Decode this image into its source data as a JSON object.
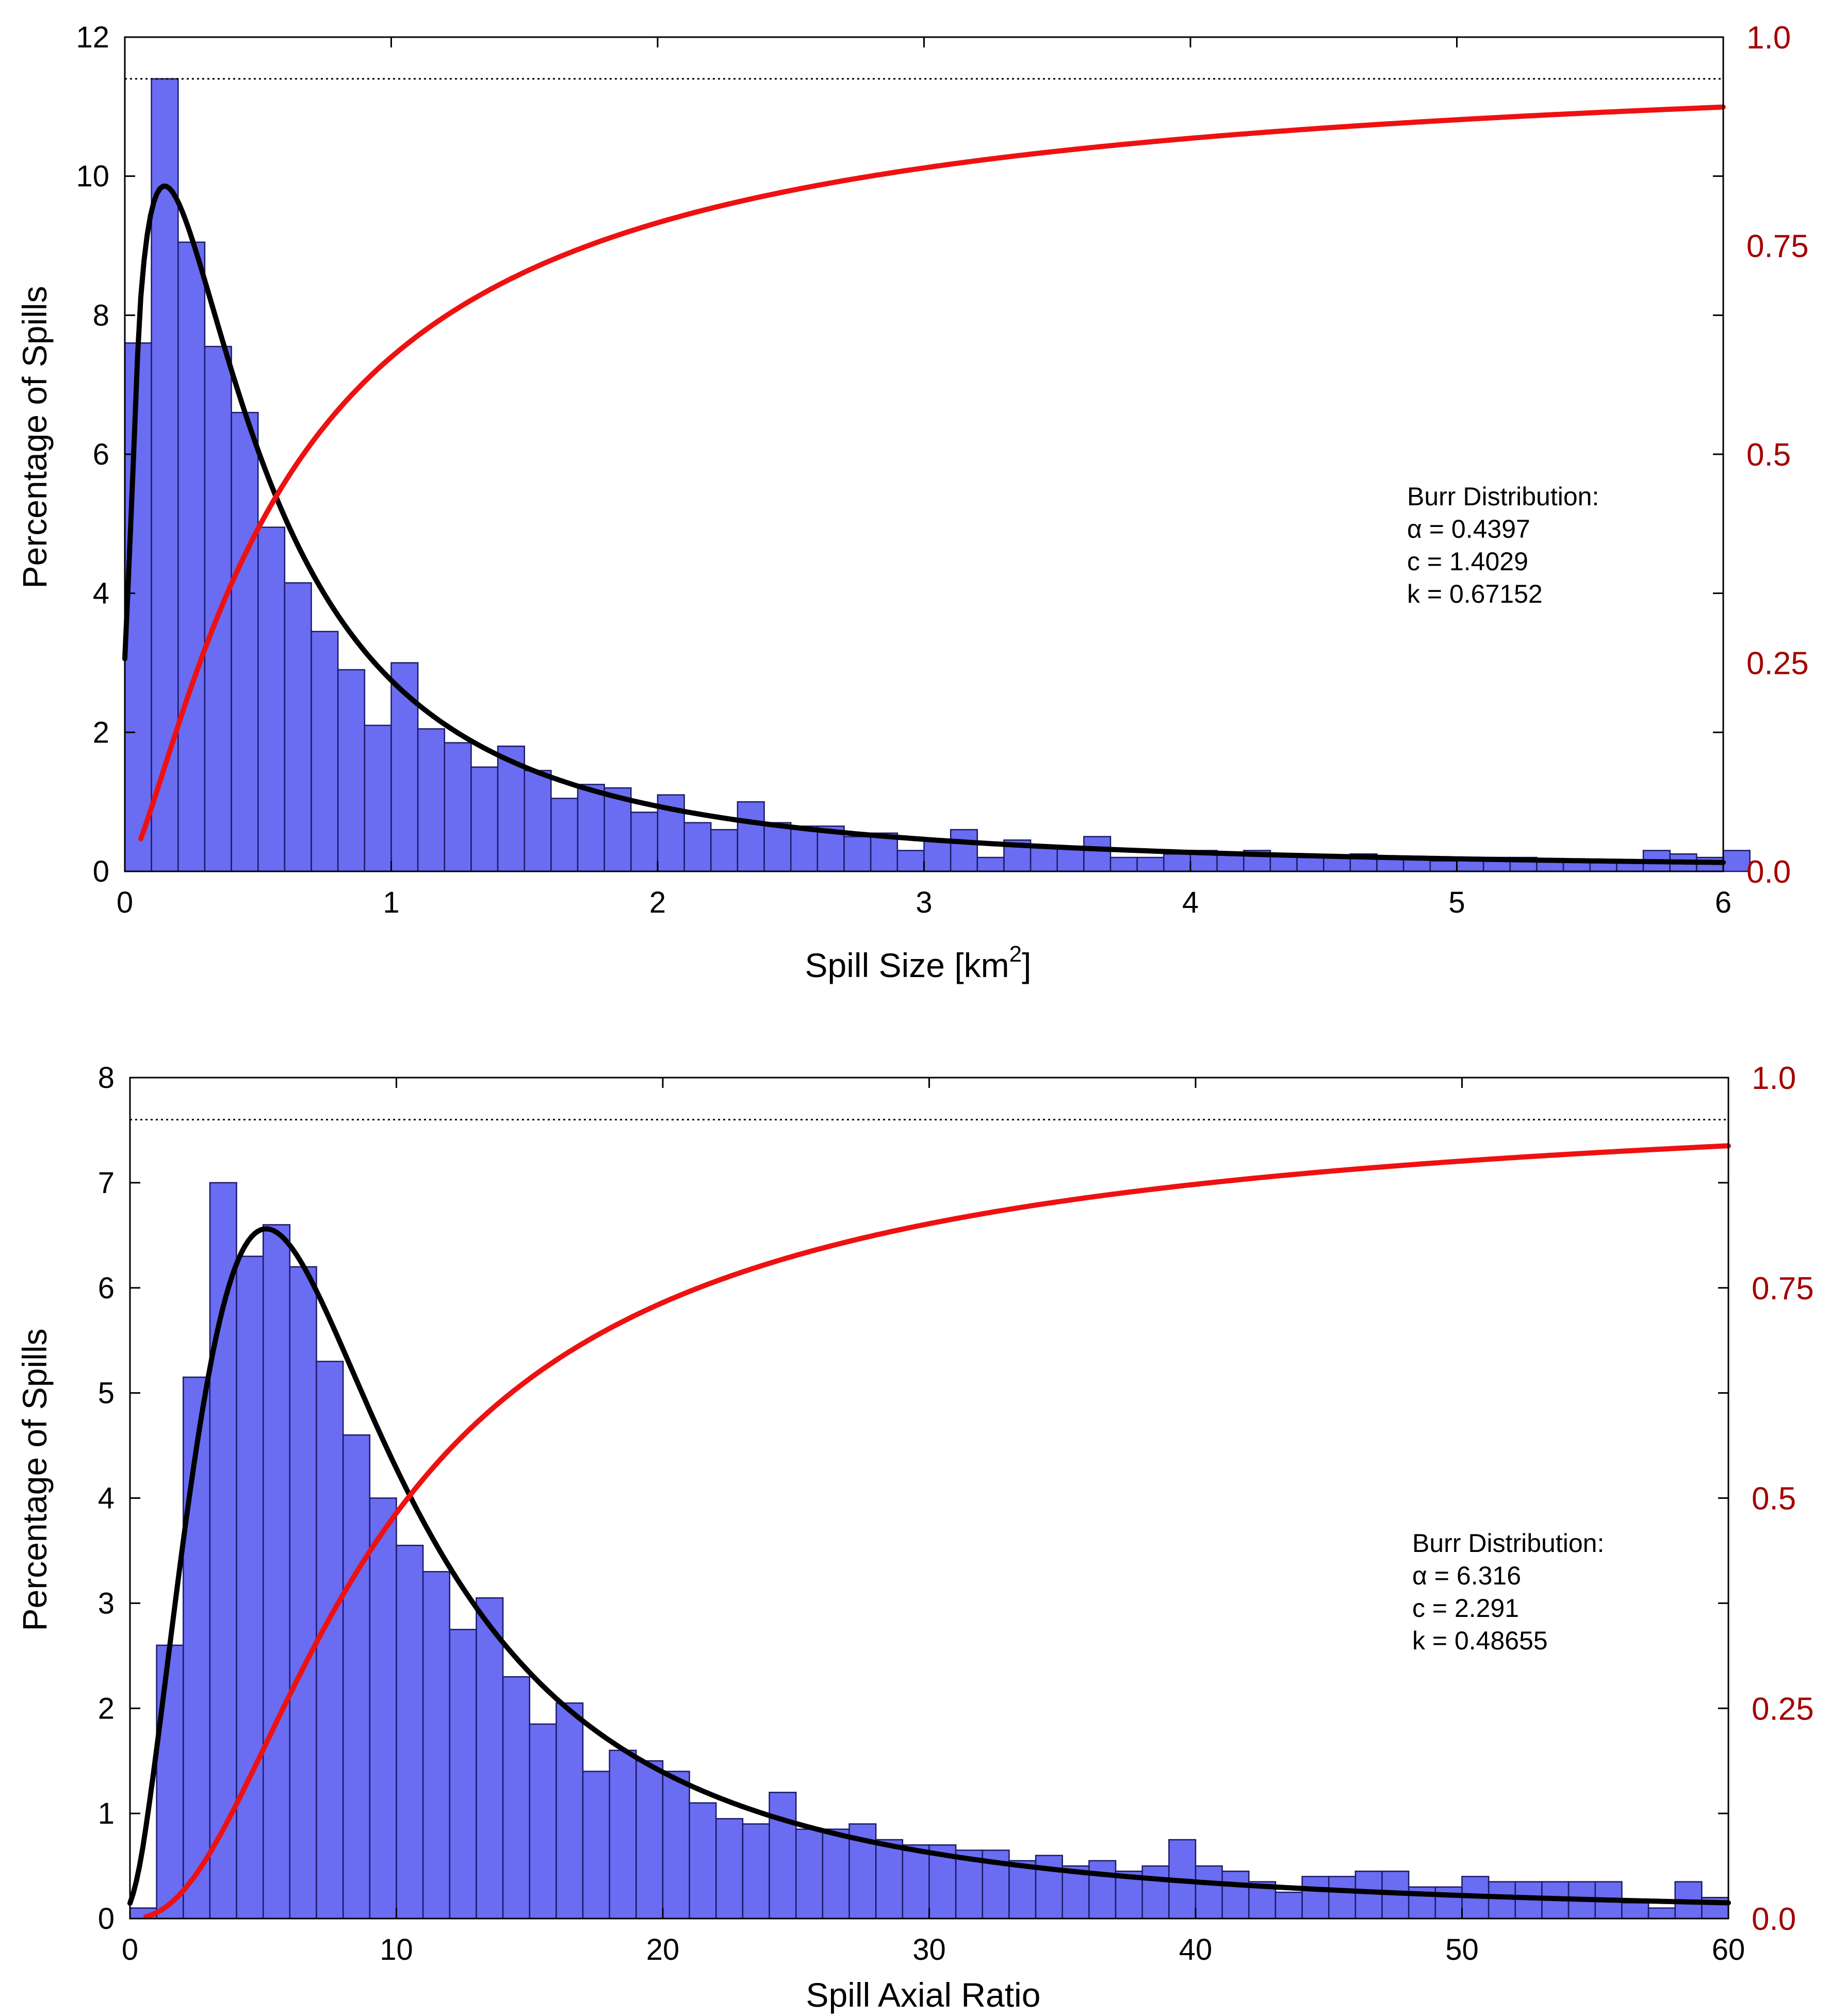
{
  "colors": {
    "bars": "#6a6cf2",
    "bar_edge": "#1a1a66",
    "pdf": "#000000",
    "cdf": "#ee1111",
    "right_axis_text": "#a50000"
  },
  "chart_data": [
    {
      "type": "bar",
      "xlabel": "Spill Size [km2]",
      "xlabel_main": "Spill Size [km",
      "xlabel_sup": "2",
      "xlabel_close": "]",
      "ylabel": "Percentage of Spills",
      "xlim": [
        0,
        6
      ],
      "ylim": [
        0,
        12
      ],
      "x_ticks": [
        "0",
        "1",
        "2",
        "3",
        "4",
        "5",
        "6"
      ],
      "y_ticks": [
        "0",
        "2",
        "4",
        "6",
        "8",
        "10",
        "12"
      ],
      "y2lim": [
        0,
        1
      ],
      "y2_ticks": [
        "0.0",
        "0.25",
        "0.5",
        "0.75",
        "1.0"
      ],
      "bin_width": 0.1,
      "values": [
        7.6,
        11.4,
        9.05,
        7.55,
        6.6,
        4.95,
        4.15,
        3.45,
        2.9,
        2.1,
        3.0,
        2.05,
        1.85,
        1.5,
        1.8,
        1.45,
        1.05,
        1.25,
        1.2,
        0.85,
        1.1,
        0.7,
        0.6,
        1.0,
        0.7,
        0.65,
        0.65,
        0.5,
        0.55,
        0.3,
        0.45,
        0.6,
        0.2,
        0.45,
        0.35,
        0.35,
        0.5,
        0.2,
        0.2,
        0.25,
        0.3,
        0.25,
        0.3,
        0.25,
        0.2,
        0.2,
        0.25,
        0.2,
        0.2,
        0.15,
        0.2,
        0.2,
        0.2,
        0.15,
        0.15,
        0.15,
        0.15,
        0.3,
        0.25,
        0.2,
        0.3
      ],
      "reference_line": 0.95,
      "annotation": [
        "Burr Distribution:",
        "α = 0.4397",
        "c = 1.4029",
        "k = 0.67152"
      ],
      "burr": {
        "alpha": 0.4397,
        "c": 1.4029,
        "k": 0.67152
      },
      "series": [
        {
          "kind": "pdf",
          "axis": "left"
        },
        {
          "kind": "cdf",
          "axis": "right"
        }
      ]
    },
    {
      "type": "bar",
      "xlabel": "Spill Axial Ratio",
      "ylabel": "Percentage of Spills",
      "xlim": [
        0,
        60
      ],
      "ylim": [
        0,
        8
      ],
      "x_ticks": [
        "0",
        "10",
        "20",
        "30",
        "40",
        "50",
        "60"
      ],
      "y_ticks": [
        "0",
        "1",
        "2",
        "3",
        "4",
        "5",
        "6",
        "7",
        "8"
      ],
      "y2lim": [
        0,
        1
      ],
      "y2_ticks": [
        "0.0",
        "0.25",
        "0.5",
        "0.75",
        "1.0"
      ],
      "bin_width": 1,
      "values": [
        0.1,
        2.6,
        5.15,
        7.0,
        6.3,
        6.6,
        6.2,
        5.3,
        4.6,
        4.0,
        3.55,
        3.3,
        2.75,
        3.05,
        2.3,
        1.85,
        2.05,
        1.4,
        1.6,
        1.5,
        1.4,
        1.1,
        0.95,
        0.9,
        1.2,
        0.85,
        0.85,
        0.9,
        0.75,
        0.7,
        0.7,
        0.65,
        0.65,
        0.55,
        0.6,
        0.5,
        0.55,
        0.45,
        0.5,
        0.75,
        0.5,
        0.45,
        0.35,
        0.25,
        0.4,
        0.4,
        0.45,
        0.45,
        0.3,
        0.3,
        0.4,
        0.35,
        0.35,
        0.35,
        0.35,
        0.35,
        0.15,
        0.1,
        0.35,
        0.2
      ],
      "reference_line": 0.95,
      "annotation": [
        "Burr Distribution:",
        "α = 6.316",
        "c = 2.291",
        "k = 0.48655"
      ],
      "burr": {
        "alpha": 6.316,
        "c": 2.291,
        "k": 0.48655
      },
      "series": [
        {
          "kind": "pdf",
          "axis": "left"
        },
        {
          "kind": "cdf",
          "axis": "right"
        }
      ]
    }
  ]
}
